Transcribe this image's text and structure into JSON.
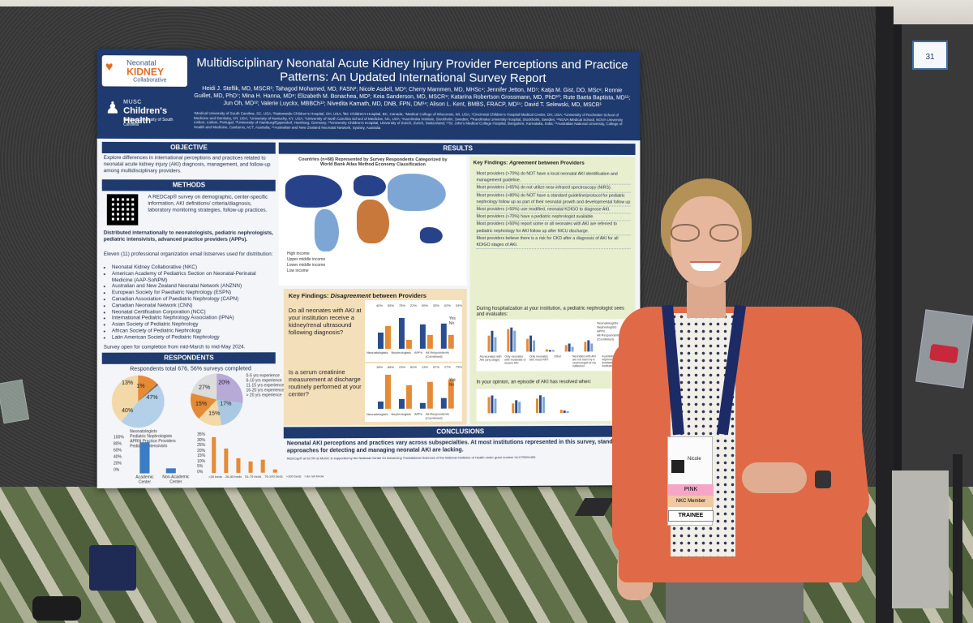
{
  "poster": {
    "title": "Multidisciplinary Neonatal Acute Kidney Injury Provider Perceptions and Practice Patterns: An Updated International Survey Report",
    "authors": "Heidi J. Steflik, MD, MSCR¹; Tahagod Mohamed, MD, FASN²; Nicole Asdell, MD³; Cherry Mammen, MD, MHSc⁴; Jennifer Jetton, MD⁵; Katja M. Gist, DO, MSc⁶; Ronnie Guillet, MD, PhD⁷; Mina H. Hanna, MD⁸; Elizabeth M. Bonachea, MD²; Keia Sanderson, MD, MSCR⁹; Katarina Robertson Grossmann, MD, PhD¹⁰; Rute Baeta Baptista, MD¹¹; Jun Oh, MD¹²; Valerie Luyckx, MBBCh¹³; Nivedita Kamath, MD, DNB, FPN, DM¹⁴; Alison L. Kent, BMBS, FRACP, MD¹⁵; David T. Selewski, MD, MSCR¹",
    "affiliations": "¹Medical University of South Carolina, SC, USA; ²Nationwide Children's Hospital, OH, USA; ³BC Children's Hospital, BC, Canada; ⁴Medical College of Wisconsin, WI, USA; ⁵Cincinnati Children's Hospital Medical Center, OH, USA; ⁶University of Rochester School of Medicine and Dentistry, NY, USA; ⁷University of Kentucky, KY, USA; ⁸University of North Carolina School of Medicine, NC, USA; ⁹Karolinska Institute, Stockholm, Sweden; ¹⁰Karolinska University Hospital, Stockholm, Sweden; ¹¹NOVA Medical School, NOVA University Lisbon, Lisbon, Portugal; ¹²University of Hamburg/Eppendorf, Hamburg, Germany; ¹³University Children's Hospital, University of Zurich, Zurich, Switzerland; ¹⁴St. John's Medical College Hospital, Bangalore, Karnataka, India; ¹⁵Australian National University, College of Health and Medicine, Canberra, ACT, Australia; ¹⁶Australian and New Zealand Neonatal Network, Sydney, Australia",
    "logo_nkc": {
      "line1": "Neonatal",
      "line2": "KIDNEY",
      "line3": "Collaborative"
    },
    "logo_musc": {
      "line1": "MUSC",
      "line2": "Children's Health",
      "line3": "Medical University of South Carolina"
    },
    "objective": {
      "heading": "OBJECTIVE",
      "text": "Explore differences in international perceptions and practices related to neonatal acute kidney injury (AKI) diagnosis, management, and follow-up among multidisciplinary providers."
    },
    "methods": {
      "heading": "METHODS",
      "redcap": "A REDCap® survey on demographic, center-specific information, AKI definitions/ criteria/diagnosis, laboratory monitoring strategies, follow-up practices.",
      "distributed": "Distributed internationally to neonatologists, pediatric nephrologists, pediatric intensivists, advanced practice providers (APPs).",
      "eleven": "Eleven (11) professional organization email listserves used for distribution:",
      "orgs": [
        "Neonatal Kidney Collaborative (NKC)",
        "American Academy of Pediatrics Section on Neonatal-Perinatal Medicine (AAP-SoNPM)",
        "Australian and New Zealand Neonatal Network (ANZNN)",
        "European Society for Paediatric Nephrology (ESPN)",
        "Canadian Association of Paediatric Nephrology (CAPN)",
        "Canadian Neonatal Network (CNN)",
        "Neonatal Certification Corporation (NCC)",
        "International Pediatric Nephrology Association (IPNA)",
        "Asian Society of Pediatric Nephrology",
        "African Society of Pediatric Nephrology",
        "Latin American Society of Pediatric Nephrology"
      ],
      "open": "Survey open for completion from mid-March to mid-May 2024."
    },
    "respondents": {
      "heading": "RESPONDENTS",
      "total": "Respondents total 676, 56% surveys completed",
      "pie1": [
        "13%",
        "1%",
        "47%",
        "40%"
      ],
      "pie1_legend": [
        "Neonatologists",
        "Pediatric Nephrologists",
        "APRN Practice Providers",
        "Pediatric Intensivists"
      ],
      "pie2": [
        "27%",
        "20%",
        "15%",
        "17%",
        "15%"
      ],
      "pie2_legend": [
        "0-5 yrs experience",
        "6-10 yrs experience",
        "11-15 yrs experience",
        "16-20 yrs experience",
        "> 20 yrs experience"
      ],
      "bar1_categories": [
        "Academic Center",
        "Non-Academic Center"
      ],
      "bar1_ticks": [
        "100%",
        "80%",
        "60%",
        "40%",
        "20%",
        "0%"
      ],
      "bar2_categories": [
        "<25 beds",
        "26-50 beds",
        "51-75 beds",
        "76-100 beds",
        ">100 beds",
        "I do not know"
      ],
      "bar2_ticks": [
        "35%",
        "30%",
        "25%",
        "20%",
        "15%",
        "10%",
        "5%",
        "0%"
      ]
    },
    "results": {
      "heading": "RESULTS",
      "map_title": "Countries (n=68) Represented by Survey Respondents Categorized by World Bank Atlas Method Economy Classification",
      "map_legend": [
        "High income",
        "Upper middle income",
        "Lower middle income",
        "Low income"
      ],
      "disagree_title_a": "Key Findings: ",
      "disagree_title_b": "Disagreement",
      "disagree_title_c": " between Providers",
      "q1": "Do all neonates with AKI at your institution receive a kidney/renal ultrasound following diagnosis?",
      "q2": "Is a serum creatinine measurement at discharge routinely performed at your center?",
      "q1_values": [
        "40%",
        "55%",
        "75%",
        "22%",
        "59%",
        "33%",
        "62%",
        "34%"
      ],
      "q_categories": [
        "Neonatologists",
        "Nephrologists",
        "APPs",
        "All Respondents (Combined)"
      ],
      "q2_values": [
        "18%",
        "86%",
        "23%",
        "60%",
        "13%",
        "67%",
        "27%",
        "73%"
      ],
      "q_legend": [
        "Yes",
        "No"
      ],
      "agree_title_a": "Key Findings: ",
      "agree_title_b": "Agreement",
      "agree_title_c": " between Providers",
      "agree_items": [
        "Most providers (>70%) do NOT have a local neonatal AKI identification and management guideline.",
        "Most providers (>65%) do not utilize near-infrared spectroscopy (NIRS).",
        "Most providers (>80%) do NOT have a standard guideline/protocol for pediatric nephrology follow up as part of their neonatal growth and developmental follow up",
        "Most providers (>50%) use modified, neonatal KDIGO to diagnose AKI.",
        "Most providers (>70%) have a pediatric nephrologist available.",
        "Most providers (>50%) report some or all neonates with AKI are referred to pediatric nephrology for AKI follow up after NICU discharge.",
        "Most providers believe there is a risk for CKD after a diagnosis of AKI for all KDIGO stages of AKI."
      ],
      "hosp_q": "During hospitalization at your institution, a pediatric nephrologist sees and evaluates:",
      "hosp_legend": [
        "Neonatologists",
        "Nephrologists",
        "APPs",
        "All Respondents (Combined)"
      ],
      "hosp_categories": [
        "All neonates with AKI (any stage)",
        "Only neonates with moderate or severe AKI",
        "Only neonates who need RRT",
        "Other",
        "Neonates with AKI are not seen by a nephrologist at my institution",
        "A pediatric nephrologist is not available at my institution"
      ],
      "resolved_q": "In your opinion, an episode of AKI has resolved when:"
    },
    "conclusions": {
      "heading": "CONCLUSIONS",
      "text": "Neonatal AKI perceptions and practices vary across subspecialties. At most institutions represented in this survey, standardized approaches for detecting and managing neonatal AKI are lacking.",
      "footnote": "REDCap® at SCTR at MUSC is supported by the National Center for Advancing Translational Sciences of the National Institutes of Health under grant number UL1TR001450"
    }
  },
  "scene": {
    "sign_text": "31",
    "badge_name": "Nicole",
    "ribbon1": "PINK",
    "ribbon2": "NKC Member",
    "ribbon3": "TRAINEE"
  }
}
